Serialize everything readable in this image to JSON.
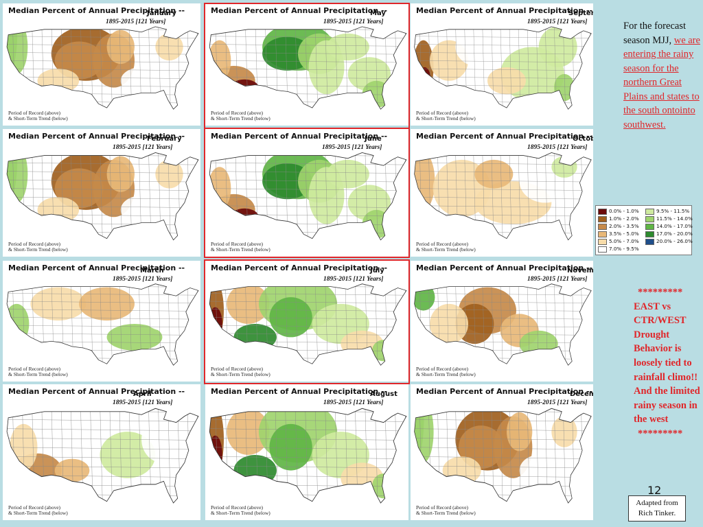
{
  "panel_title": "Median Percent of Annual Precipitation --",
  "years_text": "1895-2015 [121 Years]",
  "record_line1": "Period of Record (above)",
  "record_line2": "& Short-Term Trend (below)",
  "maps": [
    {
      "month": "January",
      "pattern": "central_dry_coast_wet"
    },
    {
      "month": "May",
      "pattern": "plains_wet_sw_dry"
    },
    {
      "month": "September",
      "pattern": "west_dry_east_mixed"
    },
    {
      "month": "February",
      "pattern": "central_dry_coast_wet"
    },
    {
      "month": "June",
      "pattern": "plains_wet_sw_dry"
    },
    {
      "month": "October",
      "pattern": "mostly_light_dry"
    },
    {
      "month": "March",
      "pattern": "mixed_light"
    },
    {
      "month": "July",
      "pattern": "west_coast_dry_interior_wet"
    },
    {
      "month": "November",
      "pattern": "central_dry_nw_wet"
    },
    {
      "month": "April",
      "pattern": "sw_dry_light"
    },
    {
      "month": "August",
      "pattern": "west_coast_dry_interior_wet"
    },
    {
      "month": "December",
      "pattern": "central_dry_coast_wet"
    }
  ],
  "highlighted_months": [
    "May",
    "June",
    "July"
  ],
  "sidebar": {
    "text_plain": "For the forecast season MJJ,",
    "text_link": "we are entering the rainy season for the northern Great Plains and states to the south ontointo southwest."
  },
  "legend": [
    {
      "label": "0.0% - 1.0%",
      "color": "#6b0a0a"
    },
    {
      "label": "1.0% - 2.0%",
      "color": "#a0601e"
    },
    {
      "label": "2.0% - 3.5%",
      "color": "#c68a4a"
    },
    {
      "label": "3.5% - 5.0%",
      "color": "#e8b878"
    },
    {
      "label": "5.0% - 7.0%",
      "color": "#f7dcaa"
    },
    {
      "label": "7.0% - 9.5%",
      "color": "#ffffff"
    },
    {
      "label": "9.5% - 11.5%",
      "color": "#cfeaa0"
    },
    {
      "label": "11.5% - 14.0%",
      "color": "#9fd46e"
    },
    {
      "label": "14.0% - 17.0%",
      "color": "#5fb545"
    },
    {
      "label": "17.0% - 20.0%",
      "color": "#2e8a2e"
    },
    {
      "label": "20.0% - 26.0%",
      "color": "#1f4e8a"
    }
  ],
  "drought_note": {
    "stars_top": "*********",
    "text": "EAST vs CTR/WEST Drought Behavior  is loosely tied to rainfall climo!! And the limited rainy season in the west",
    "stars_bottom": "*********"
  },
  "page_number": "12",
  "credit": {
    "line1": "Adapted from",
    "line2": "Rich Tinker."
  }
}
